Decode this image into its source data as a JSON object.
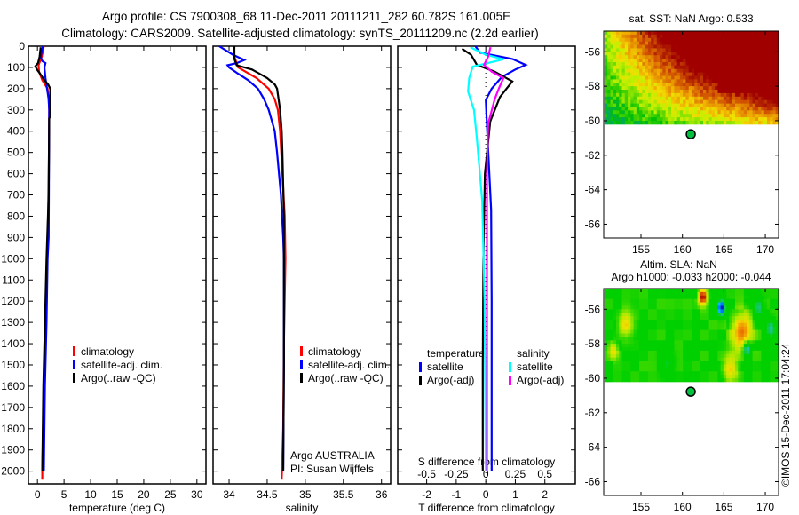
{
  "title": {
    "line1": "Argo profile: CS 7900308_68 11-Dec-2011 20111211_282 60.782S 161.005E",
    "line2": "Climatology: CARS2009. Satellite-adjusted climatology: synTS_20111209.nc (2.2d earlier)"
  },
  "colors": {
    "climatology": "#ff0000",
    "satellite": "#0000ff",
    "argo": "#000000",
    "s_satellite": "#00ffff",
    "s_argo": "#ff00ff"
  },
  "chart_data": [
    {
      "type": "line",
      "id": "temperature",
      "xlabel": "temperature (deg C)",
      "ylabel": "",
      "xlim": [
        -1.7,
        31.7
      ],
      "ylim": [
        2060,
        0
      ],
      "xticks": [
        0,
        5,
        10,
        15,
        20,
        25,
        30
      ],
      "yticks": [
        0,
        100,
        200,
        300,
        400,
        500,
        600,
        700,
        800,
        900,
        1000,
        1100,
        1200,
        1300,
        1400,
        1500,
        1600,
        1700,
        1800,
        1900,
        2000
      ],
      "legend": [
        "climatology",
        "satellite-adj. clim.",
        "Argo(..raw -QC)"
      ],
      "series": [
        {
          "name": "climatology",
          "color": "#ff0000",
          "depth": [
            0,
            50,
            90,
            120,
            160,
            200,
            250,
            300,
            500,
            800,
            1000,
            1300,
            1600,
            2000,
            2040
          ],
          "values": [
            1.2,
            0.8,
            0.2,
            0.3,
            0.9,
            1.9,
            2.1,
            2.2,
            2.15,
            2.0,
            1.8,
            1.5,
            1.2,
            0.9,
            0.9
          ]
        },
        {
          "name": "satellite-adj. clim.",
          "color": "#0000ff",
          "depth": [
            0,
            50,
            70,
            80,
            100,
            150,
            200,
            250,
            300,
            600,
            900,
            1000,
            1300,
            1600,
            2000
          ],
          "values": [
            1.0,
            0.6,
            0.9,
            1.5,
            1.3,
            1.5,
            1.8,
            2.1,
            2.2,
            2.15,
            2.1,
            1.9,
            1.7,
            1.4,
            1.2
          ]
        },
        {
          "name": "Argo(..raw -QC)",
          "color": "#000000",
          "depth": [
            5,
            50,
            80,
            95,
            110,
            130,
            160,
            180,
            200,
            250,
            330,
            340,
            700,
            1000,
            1300,
            1600,
            2000
          ],
          "values": [
            0.6,
            0.4,
            0.1,
            -0.4,
            -0.1,
            0.5,
            1.3,
            2.0,
            2.4,
            2.4,
            2.4,
            2.2,
            2.1,
            1.7,
            1.4,
            1.1,
            0.9
          ]
        }
      ]
    },
    {
      "type": "line",
      "id": "salinity",
      "xlabel": "salinity",
      "xlim": [
        33.79,
        36.12
      ],
      "ylim": [
        2060,
        0
      ],
      "xticks": [
        34,
        34.5,
        35,
        35.5,
        36
      ],
      "legend": [
        "climatology",
        "satellite-adj. clim.",
        "Argo(..raw -QC)"
      ],
      "annotation": [
        "Argo AUSTRALIA",
        "PI: Susan Wijffels"
      ],
      "series": [
        {
          "name": "climatology",
          "color": "#ff0000",
          "depth": [
            0,
            50,
            100,
            150,
            200,
            250,
            300,
            400,
            600,
            800,
            1000,
            1400,
            1800,
            2040
          ],
          "values": [
            34.06,
            34.07,
            34.12,
            34.36,
            34.52,
            34.6,
            34.64,
            34.67,
            34.7,
            34.73,
            34.74,
            34.72,
            34.71,
            34.69
          ]
        },
        {
          "name": "satellite-adj. clim.",
          "color": "#0000ff",
          "depth": [
            0,
            40,
            65,
            80,
            90,
            100,
            130,
            160,
            200,
            250,
            300,
            400,
            500,
            700,
            900,
            1000,
            1500,
            2000
          ],
          "values": [
            33.87,
            34.05,
            34.2,
            34.1,
            33.98,
            34.0,
            34.12,
            34.25,
            34.38,
            34.46,
            34.52,
            34.6,
            34.63,
            34.68,
            34.71,
            34.72,
            34.72,
            34.71
          ]
        },
        {
          "name": "Argo(..raw -QC)",
          "color": "#000000",
          "depth": [
            0,
            60,
            90,
            110,
            130,
            150,
            180,
            200,
            300,
            400,
            500,
            800,
            1000,
            1500,
            2000
          ],
          "values": [
            34.07,
            34.07,
            34.1,
            34.3,
            34.4,
            34.5,
            34.6,
            34.63,
            34.67,
            34.69,
            34.7,
            34.72,
            34.72,
            34.72,
            34.71
          ]
        }
      ]
    },
    {
      "type": "line",
      "id": "difference",
      "xlabel": "T difference from climatology",
      "xlabel_top": "S difference from climatology",
      "xlim": [
        -2.98,
        3.03
      ],
      "ylim": [
        2060,
        0
      ],
      "xticks": [
        -2,
        -1,
        0,
        1,
        2
      ],
      "xticks_s": [
        -0.5,
        -0.25,
        0,
        0.25,
        0.5
      ],
      "legend": {
        "temperature_heading": "temperature",
        "salinity_heading": "salinity",
        "t_satellite": "satellite",
        "t_argo": "Argo(-adj)",
        "s_satellite": "satellite",
        "s_argo": "Argo(-adj)"
      },
      "series": [
        {
          "name": "T satellite",
          "color": "#0000ff",
          "unit": "T",
          "depth": [
            0,
            30,
            60,
            88,
            110,
            146,
            200,
            254,
            400,
            770,
            1200,
            2000
          ],
          "values": [
            -0.35,
            -0.2,
            0.9,
            1.35,
            1.0,
            0.54,
            0.2,
            0.0,
            0.05,
            0.18,
            0.2,
            0.2
          ]
        },
        {
          "name": "T Argo(-adj)",
          "color": "#000000",
          "unit": "T",
          "depth": [
            12,
            40,
            88,
            120,
            166,
            200,
            240,
            354,
            600,
            1000,
            1500,
            2000
          ],
          "values": [
            -0.8,
            -0.5,
            -0.3,
            0.3,
            0.9,
            0.7,
            0.48,
            0.15,
            -0.03,
            -0.08,
            -0.1,
            -0.1
          ]
        },
        {
          "name": "S satellite",
          "color": "#00ffff",
          "unit": "S",
          "depth": [
            5,
            40,
            62,
            96,
            150,
            213,
            300,
            437,
            730,
            1200,
            2000
          ],
          "values": [
            -0.13,
            0.0,
            0.15,
            -0.11,
            -0.14,
            -0.15,
            -0.1,
            -0.075,
            -0.03,
            -0.01,
            0.0
          ]
        },
        {
          "name": "S Argo(-adj)",
          "color": "#ff00ff",
          "unit": "S",
          "depth": [
            5,
            50,
            88,
            120,
            150,
            200,
            250,
            367,
            600,
            1000,
            2000
          ],
          "values": [
            0.04,
            0.02,
            -0.015,
            0.05,
            0.15,
            0.11,
            0.075,
            0.02,
            0.01,
            0.01,
            0.01
          ]
        }
      ]
    },
    {
      "type": "heatmap",
      "id": "sst-map",
      "title": "sat. SST: NaN Argo: 0.533",
      "xlim": [
        150.5,
        171.6
      ],
      "ylim": [
        -66.8,
        -54.8
      ],
      "xticks": [
        155,
        160,
        165,
        170
      ],
      "yticks": [
        -56,
        -58,
        -60,
        -62,
        -64,
        -66
      ],
      "data_extent_lat": [
        -60.1,
        -54.8
      ],
      "argo_position": {
        "lon": 161.005,
        "lat": -60.782
      }
    },
    {
      "type": "heatmap",
      "id": "sla-map",
      "title": "Altim. SLA: NaN",
      "subtitle": "Argo h1000: -0.033 h2000: -0.044",
      "xlim": [
        150.5,
        171.6
      ],
      "ylim": [
        -66.8,
        -54.8
      ],
      "xticks": [
        155,
        160,
        165,
        170
      ],
      "yticks": [
        -56,
        -58,
        -60,
        -62,
        -64,
        -66
      ],
      "data_extent_lat": [
        -60.1,
        -54.8
      ],
      "argo_position": {
        "lon": 161.005,
        "lat": -60.782
      }
    }
  ],
  "credit": "©IMOS 15-Dec-2011 17:04:24"
}
